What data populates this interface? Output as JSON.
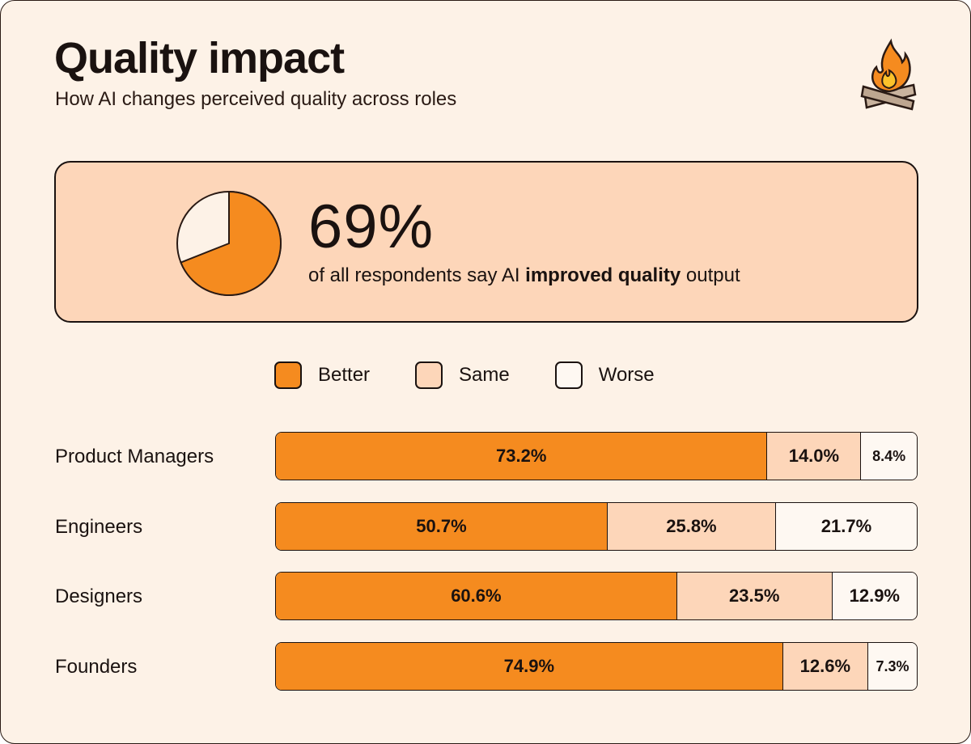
{
  "title": "Quality impact",
  "subtitle": "How AI changes perceived quality across roles",
  "icon": "campfire-icon",
  "highlight": {
    "value": "69%",
    "fraction": 0.69,
    "caption_pre": "of all respondents say AI ",
    "caption_bold": "improved quality",
    "caption_post": " output"
  },
  "colors": {
    "better": "#f58b1f",
    "same": "#fdd6b9",
    "worse": "#fef8f2",
    "background": "#fdf2e7",
    "border": "#1a1210"
  },
  "chart_data": {
    "type": "bar",
    "orientation": "horizontal",
    "stacked": true,
    "categories": [
      "Product Managers",
      "Engineers",
      "Designers",
      "Founders"
    ],
    "legend": [
      "Better",
      "Same",
      "Worse"
    ],
    "legend_position": "top",
    "series": [
      {
        "name": "Better",
        "values": [
          73.2,
          50.7,
          60.6,
          74.9
        ],
        "labels": [
          "73.2%",
          "50.7%",
          "60.6%",
          "74.9%"
        ]
      },
      {
        "name": "Same",
        "values": [
          14.0,
          25.8,
          23.5,
          12.6
        ],
        "labels": [
          "14.0%",
          "25.8%",
          "23.5%",
          "12.6%"
        ]
      },
      {
        "name": "Worse",
        "values": [
          8.4,
          21.7,
          12.9,
          7.3
        ],
        "labels": [
          "8.4%",
          "21.7%",
          "12.9%",
          "7.3%"
        ]
      }
    ]
  }
}
